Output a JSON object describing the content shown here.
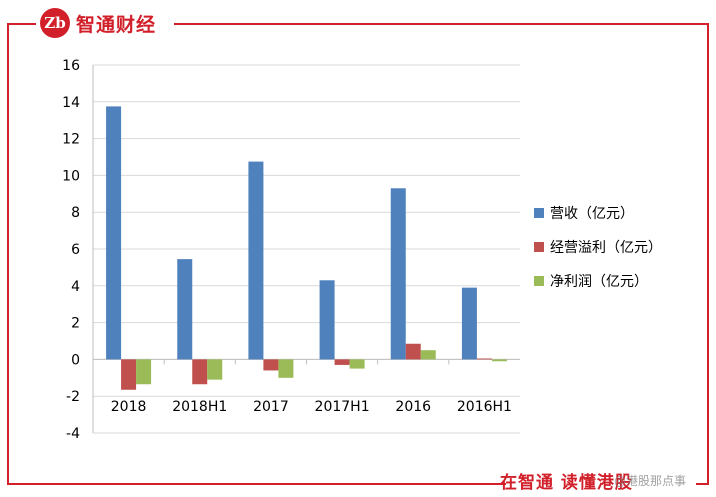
{
  "brand": {
    "logo_text": "Zb",
    "name": "智通财经"
  },
  "footer": {
    "slogan": "在智通 读懂港股",
    "watermark": "@港股那点事"
  },
  "colors": {
    "brand_red": "#d2202a",
    "revenue": "#4f81bd",
    "operating_profit": "#c0504d",
    "net_profit": "#9bbb59"
  },
  "chart_data": {
    "type": "bar",
    "categories": [
      "2018",
      "2018H1",
      "2017",
      "2017H1",
      "2016",
      "2016H1"
    ],
    "series": [
      {
        "name": "营收（亿元）",
        "values": [
          13.75,
          5.45,
          10.75,
          4.3,
          9.3,
          3.9
        ]
      },
      {
        "name": "经营溢利（亿元）",
        "values": [
          -1.65,
          -1.35,
          -0.6,
          -0.3,
          0.85,
          0.05
        ]
      },
      {
        "name": "净利润（亿元）",
        "values": [
          -1.35,
          -1.1,
          -1.0,
          -0.5,
          0.5,
          -0.1
        ]
      }
    ],
    "ylim": [
      -4,
      16
    ],
    "yticks": [
      -4,
      -2,
      0,
      2,
      4,
      6,
      8,
      10,
      12,
      14,
      16
    ],
    "grid": true,
    "legend": "right"
  }
}
